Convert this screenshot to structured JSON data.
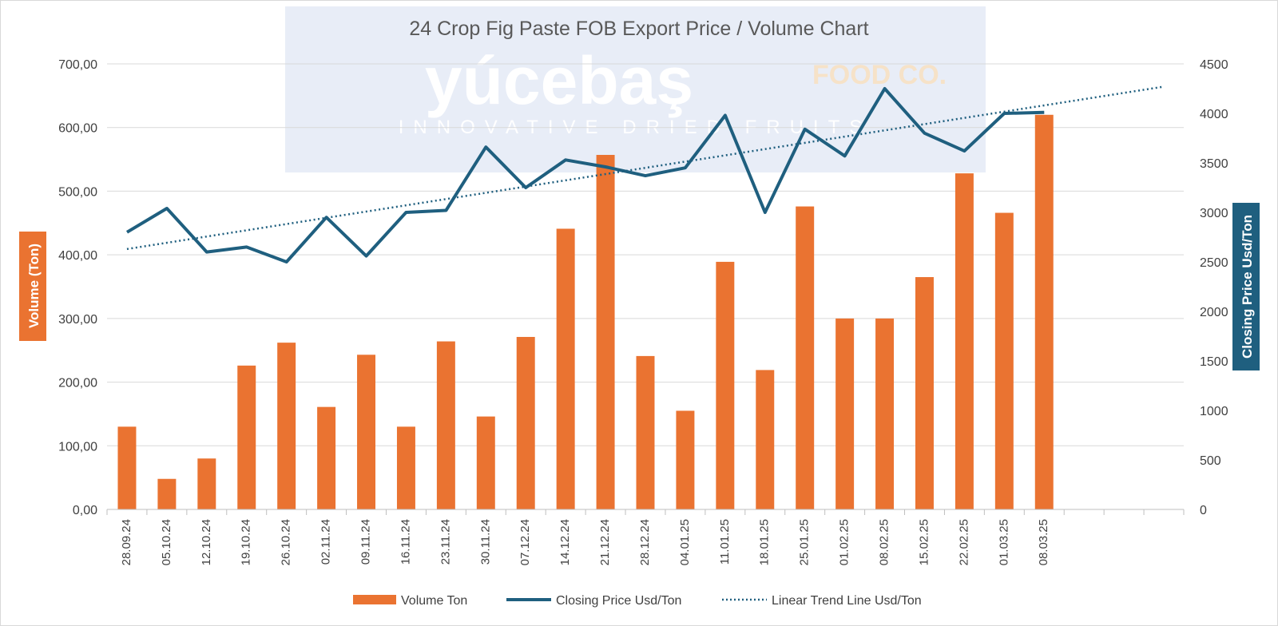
{
  "chart_data": {
    "type": "bar+line",
    "title": "24 Crop Fig Paste FOB Export Price / Volume Chart",
    "categories": [
      "28.09.24",
      "05.10.24",
      "12.10.24",
      "19.10.24",
      "26.10.24",
      "02.11.24",
      "09.11.24",
      "16.11.24",
      "23.11.24",
      "30.11.24",
      "07.12.24",
      "14.12.24",
      "21.12.24",
      "28.12.24",
      "04.01.25",
      "11.01.25",
      "18.01.25",
      "25.01.25",
      "01.02.25",
      "08.02.25",
      "15.02.25",
      "22.02.25",
      "01.03.25",
      "08.03.25"
    ],
    "series": [
      {
        "name": "Volume Ton",
        "type": "bar",
        "axis": "left",
        "color": "#ea7331",
        "values": [
          130,
          48,
          80,
          226,
          262,
          161,
          243,
          130,
          264,
          146,
          271,
          441,
          557,
          241,
          155,
          389,
          219,
          476,
          300,
          300,
          365,
          528,
          466,
          620
        ]
      },
      {
        "name": "Closing Price Usd/Ton",
        "type": "line",
        "axis": "right",
        "color": "#1f5f7f",
        "values": [
          2800,
          3040,
          2600,
          2650,
          2500,
          2950,
          2560,
          3000,
          3020,
          3660,
          3250,
          3530,
          3460,
          3370,
          3450,
          3980,
          3000,
          3840,
          3570,
          4250,
          3800,
          3620,
          4000,
          4010
        ]
      },
      {
        "name": "Linear Trend Line Usd/Ton",
        "type": "trendline",
        "axis": "right",
        "color": "#1f5f7f",
        "start": 2630,
        "end": 4270,
        "extends_periods": 27
      }
    ],
    "y_left": {
      "label": "Volume (Ton)",
      "min": 0,
      "max": 700,
      "step": 100,
      "ticks": [
        "0,00",
        "100,00",
        "200,00",
        "300,00",
        "400,00",
        "500,00",
        "600,00",
        "700,00"
      ],
      "label_bg": "#ea7331"
    },
    "y_right": {
      "label": "Closing Price Usd/Ton",
      "min": 0,
      "max": 4500,
      "step": 500,
      "ticks": [
        "0",
        "500",
        "1000",
        "1500",
        "2000",
        "2500",
        "3000",
        "3500",
        "4000",
        "4500"
      ],
      "label_bg": "#1f5f7f"
    },
    "total_slots": 27,
    "grid": true,
    "legend_position": "bottom"
  },
  "watermark": {
    "brand": "yúcebaş",
    "brand_suffix": "FOOD CO.",
    "tagline": "INNOVATIVE DRIED FRUITS",
    "bg_color": "#e8edf7"
  }
}
